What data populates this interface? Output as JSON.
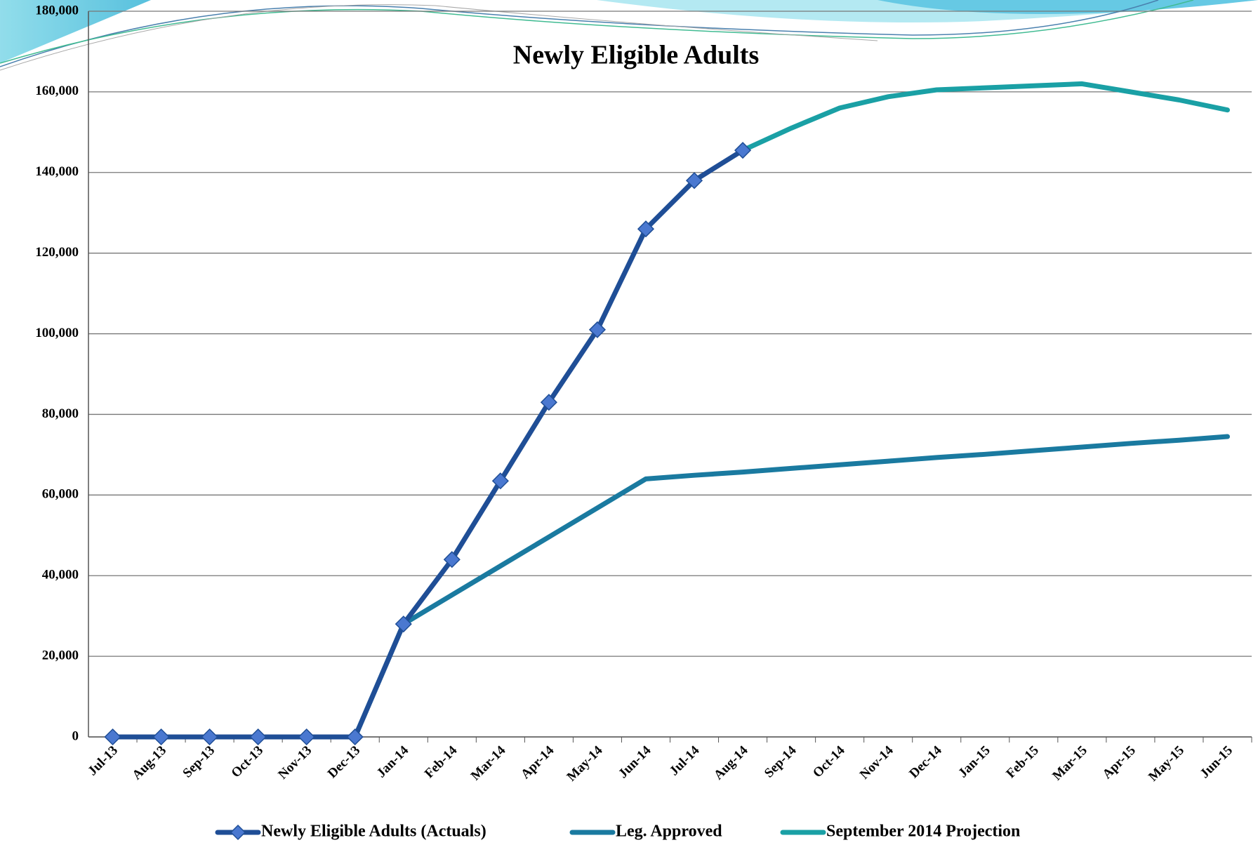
{
  "chart_data": {
    "type": "line",
    "title": "Newly Eligible Adults",
    "categories": [
      "Jul-13",
      "Aug-13",
      "Sep-13",
      "Oct-13",
      "Nov-13",
      "Dec-13",
      "Jan-14",
      "Feb-14",
      "Mar-14",
      "Apr-14",
      "May-14",
      "Jun-14",
      "Jul-14",
      "Aug-14",
      "Sep-14",
      "Oct-14",
      "Nov-14",
      "Dec-14",
      "Jan-15",
      "Feb-15",
      "Mar-15",
      "Apr-15",
      "May-15",
      "Jun-15"
    ],
    "series": [
      {
        "name": "Newly Eligible Adults (Actuals)",
        "color": "#1f4e96",
        "marker": "diamond",
        "marker_color": "#4a78d0",
        "values": [
          0,
          0,
          0,
          0,
          0,
          0,
          28000,
          44000,
          63500,
          83000,
          101000,
          126000,
          138000,
          145500,
          null,
          null,
          null,
          null,
          null,
          null,
          null,
          null,
          null,
          null
        ]
      },
      {
        "name": "Leg. Approved",
        "color": "#1a7aa0",
        "values": [
          0,
          0,
          0,
          0,
          0,
          0,
          28000,
          35200,
          42400,
          49600,
          56800,
          64000,
          64900,
          65700,
          66600,
          67500,
          68400,
          69300,
          70100,
          71000,
          71900,
          72800,
          73600,
          74500
        ]
      },
      {
        "name": "September 2014 Projection",
        "color": "#1aa0a5",
        "values": [
          null,
          null,
          null,
          null,
          null,
          null,
          null,
          null,
          null,
          null,
          null,
          null,
          null,
          145500,
          151000,
          156000,
          158800,
          160500,
          161000,
          161500,
          162000,
          160000,
          158000,
          155500
        ]
      }
    ],
    "ylim": [
      0,
      180000
    ],
    "yticks": [
      0,
      {
        "value": 20000,
        "label": "20,000"
      },
      {
        "value": 40000,
        "label": "40,000"
      },
      {
        "value": 60000,
        "label": "60,000"
      },
      {
        "value": 80000,
        "label": "80,000"
      },
      {
        "value": 100000,
        "label": "100,000"
      },
      {
        "value": 120000,
        "label": "120,000"
      },
      {
        "value": 140000,
        "label": "140,000"
      },
      {
        "value": 160000,
        "label": "160,000"
      },
      {
        "value": 180000,
        "label": "180,000"
      }
    ],
    "grid": true,
    "legend": "bottom"
  }
}
